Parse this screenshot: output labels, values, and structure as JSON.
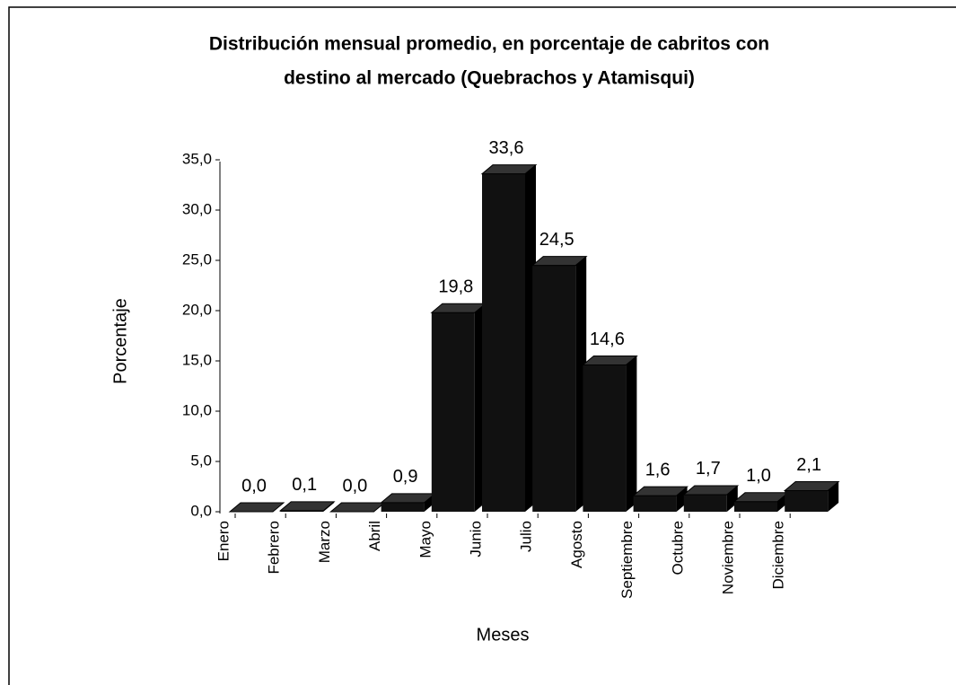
{
  "chart_data": {
    "type": "bar3d",
    "title": [
      "Distribución mensual promedio, en porcentaje de cabritos con",
      "destino al mercado (Quebrachos y Atamisqui)"
    ],
    "x_label": "Meses",
    "y_label": "Porcentaje",
    "categories": [
      "Enero",
      "Febrero",
      "Marzo",
      "Abril",
      "Mayo",
      "Junio",
      "Julio",
      "Agosto",
      "Septiembre",
      "Octubre",
      "Noviembre",
      "Diciembre"
    ],
    "values": [
      0.0,
      0.1,
      0.0,
      0.9,
      19.8,
      33.6,
      24.5,
      14.6,
      1.6,
      1.7,
      1.0,
      2.1
    ],
    "value_labels": [
      "0,0",
      "0,1",
      "0,0",
      "0,9",
      "19,8",
      "33,6",
      "24,5",
      "14,6",
      "1,6",
      "1,7",
      "1,0",
      "2,1"
    ],
    "color": "#111111",
    "ylim": [
      0,
      35
    ],
    "yticks": [
      {
        "value": 0,
        "label": "0,0"
      },
      {
        "value": 5,
        "label": "5,0"
      },
      {
        "value": 10,
        "label": "10,0"
      },
      {
        "value": 15,
        "label": "15,0"
      },
      {
        "value": 20,
        "label": "20,0"
      },
      {
        "value": 25,
        "label": "25,0"
      },
      {
        "value": 30,
        "label": "30,0"
      },
      {
        "value": 35,
        "label": "35,0"
      }
    ]
  }
}
